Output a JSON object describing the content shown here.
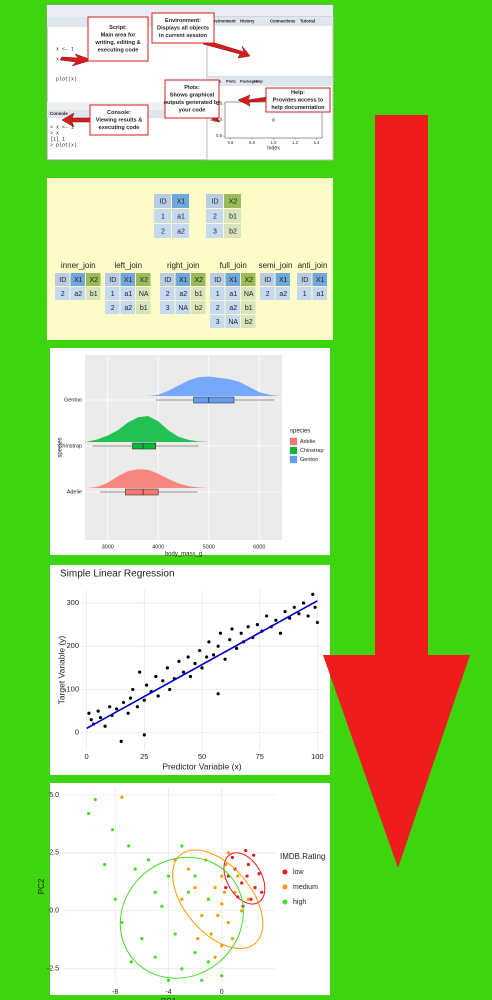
{
  "rstudio": {
    "tabs": [
      "Environment",
      "History",
      "Connections",
      "Tutorial"
    ],
    "plot_tabs": [
      "Files",
      "Plots",
      "Packages",
      "Help"
    ],
    "script_code": [
      "x <- 1",
      "x",
      "plot(x)"
    ],
    "console_tab": "Console",
    "console_lines": [
      "> x <- 1",
      "> x",
      "[1] 1",
      "> plot(x)"
    ],
    "callouts": [
      {
        "lines": [
          "Script:",
          "Main area for",
          "writing, editing &",
          "executing code"
        ]
      },
      {
        "lines": [
          "Environment:",
          "Displays all objects",
          "in current session"
        ]
      },
      {
        "lines": [
          "Help:",
          "Provides access to",
          "help documentation"
        ]
      },
      {
        "lines": [
          "Plots:",
          "Shows graphical",
          "outputs generated by",
          "your code"
        ]
      },
      {
        "lines": [
          "Console:",
          "Viewing results &",
          "executing code"
        ]
      }
    ]
  },
  "joins": {
    "header_colors": {
      "ID": "#b8cce4",
      "X1": "#6fa8dc",
      "X2": "#9bbb59"
    },
    "cell_colors": {
      "ID": "#c5d9f1",
      "X1": "#c5d9f1",
      "X2": "#d7e4bc"
    },
    "left_table": {
      "header": [
        "ID",
        "X1"
      ],
      "rows": [
        [
          "1",
          "a1"
        ],
        [
          "2",
          "a2"
        ]
      ]
    },
    "right_table": {
      "header": [
        "ID",
        "X2"
      ],
      "rows": [
        [
          "2",
          "b1"
        ],
        [
          "3",
          "b2"
        ]
      ]
    },
    "results": [
      {
        "name": "inner_join",
        "header": [
          "ID",
          "X1",
          "X2"
        ],
        "rows": [
          [
            "2",
            "a2",
            "b1"
          ]
        ]
      },
      {
        "name": "left_join",
        "header": [
          "ID",
          "X1",
          "X2"
        ],
        "rows": [
          [
            "1",
            "a1",
            "NA"
          ],
          [
            "2",
            "a2",
            "b1"
          ]
        ]
      },
      {
        "name": "right_join",
        "header": [
          "ID",
          "X1",
          "X2"
        ],
        "rows": [
          [
            "2",
            "a2",
            "b1"
          ],
          [
            "3",
            "NA",
            "b2"
          ]
        ]
      },
      {
        "name": "full_join",
        "header": [
          "ID",
          "X1",
          "X2"
        ],
        "rows": [
          [
            "1",
            "a1",
            "NA"
          ],
          [
            "2",
            "a2",
            "b1"
          ],
          [
            "3",
            "NA",
            "b2"
          ]
        ]
      },
      {
        "name": "semi_join",
        "header": [
          "ID",
          "X1"
        ],
        "rows": [
          [
            "2",
            "a2"
          ]
        ]
      },
      {
        "name": "anti_join",
        "header": [
          "ID",
          "X1"
        ],
        "rows": [
          [
            "1",
            "a1"
          ]
        ]
      }
    ]
  },
  "chart_data": [
    {
      "type": "raincloud",
      "xlabel": "body_mass_g",
      "ylabel": "species",
      "legend_title": "species",
      "grid": true,
      "categories": [
        "Adelie",
        "Chinstrap",
        "Gentoo"
      ],
      "xlim": [
        2550,
        6450
      ],
      "xticks": [
        3000,
        4000,
        5000,
        6000
      ],
      "density_x": [
        2600,
        2800,
        3000,
        3200,
        3400,
        3600,
        3800,
        4000,
        4200,
        4400,
        4600,
        4800,
        5000,
        5200,
        5400,
        5600,
        5800,
        6000,
        6200,
        6400
      ],
      "series": [
        {
          "name": "Adelie",
          "color": "#f8766d",
          "min": 2850,
          "q1": 3350,
          "median": 3700,
          "q3": 4000,
          "max": 4775,
          "density": [
            0,
            0.05,
            0.2,
            0.45,
            0.65,
            0.72,
            0.7,
            0.55,
            0.35,
            0.18,
            0.07,
            0.02,
            0,
            0,
            0,
            0,
            0,
            0,
            0,
            0
          ]
        },
        {
          "name": "Chinstrap",
          "color": "#00ba38",
          "min": 2700,
          "q1": 3490,
          "median": 3700,
          "q3": 3950,
          "max": 4800,
          "density": [
            0.02,
            0.1,
            0.25,
            0.45,
            0.75,
            0.95,
            1.0,
            0.8,
            0.45,
            0.2,
            0.08,
            0.02,
            0,
            0,
            0,
            0,
            0,
            0,
            0,
            0
          ]
        },
        {
          "name": "Gentoo",
          "color": "#619cff",
          "min": 3950,
          "q1": 4700,
          "median": 5000,
          "q3": 5500,
          "max": 6300,
          "density": [
            0,
            0,
            0,
            0,
            0,
            0,
            0,
            0.05,
            0.2,
            0.4,
            0.6,
            0.72,
            0.75,
            0.7,
            0.65,
            0.55,
            0.35,
            0.15,
            0.05,
            0
          ]
        }
      ]
    },
    {
      "type": "scatter",
      "title": "Simple Linear Regression",
      "xlabel": "Predictor Variable (x)",
      "ylabel": "Target Variable (y)",
      "grid": true,
      "xlim": [
        -2,
        102
      ],
      "xticks": [
        0,
        25,
        50,
        75,
        100
      ],
      "ylim": [
        -40,
        330
      ],
      "yticks": [
        0,
        100,
        200,
        300
      ],
      "series": [
        {
          "color": "#000000",
          "x": [
            1,
            2,
            3,
            5,
            6,
            8,
            10,
            11,
            13,
            15,
            16,
            18,
            19,
            20,
            22,
            23,
            25,
            26,
            28,
            30,
            31,
            33,
            35,
            36,
            38,
            40,
            42,
            44,
            45,
            47,
            49,
            50,
            52,
            53,
            55,
            57,
            58,
            60,
            62,
            63,
            65,
            67,
            68,
            70,
            72,
            74,
            76,
            78,
            80,
            82,
            84,
            86,
            88,
            90,
            92,
            94,
            96,
            98,
            99,
            100,
            57,
            25
          ],
          "y": [
            45,
            30,
            20,
            50,
            35,
            15,
            60,
            40,
            55,
            -20,
            70,
            45,
            80,
            100,
            60,
            140,
            75,
            110,
            95,
            130,
            85,
            120,
            150,
            100,
            125,
            165,
            140,
            175,
            130,
            160,
            190,
            150,
            175,
            210,
            180,
            200,
            230,
            170,
            215,
            240,
            195,
            230,
            210,
            245,
            220,
            250,
            235,
            270,
            245,
            260,
            230,
            280,
            265,
            290,
            275,
            300,
            270,
            320,
            290,
            255,
            90,
            -5
          ]
        }
      ],
      "line": {
        "color": "#0000cc",
        "x": [
          0,
          100
        ],
        "y": [
          10,
          305
        ]
      }
    },
    {
      "type": "scatter",
      "xlabel": "PC1",
      "ylabel": "PC2",
      "legend_title": "IMDB.Rating",
      "grid": true,
      "xlim": [
        -12,
        4
      ],
      "xticks": [
        -8,
        -4,
        0
      ],
      "ylim": [
        -3.2,
        5.3
      ],
      "yticks": [
        {
          "value": 5,
          "label": "5.0"
        },
        2.5,
        {
          "value": 0,
          "label": "0.0"
        },
        -2.5
      ],
      "series": [
        {
          "name": "low",
          "color": "#e41a1c",
          "x": [
            1,
            1.5,
            2,
            2.5,
            1.8,
            0.5,
            2.2,
            1.2,
            2.8,
            0.8,
            1.6,
            2.4,
            3,
            0.3,
            1.9
          ],
          "y": [
            1.8,
            1.2,
            2,
            1,
            2.6,
            1.5,
            0.5,
            0.6,
            1.6,
            2.3,
            0.2,
            2.4,
            0.8,
            1,
            1.5
          ],
          "ellipse": {
            "cx": 1.7,
            "cy": 1.4,
            "rx": 1.3,
            "ry": 1.2,
            "angle": -30
          }
        },
        {
          "name": "medium",
          "color": "#ff9900",
          "x": [
            -1,
            -0.5,
            0,
            0.5,
            -1.5,
            0,
            -0.8,
            0.3,
            1,
            -2,
            -1.2,
            0.8,
            -0.3,
            1.5,
            -2.5,
            0,
            -1.8,
            0.5,
            -3,
            -7.5,
            -3.5,
            1.2,
            -0.5,
            2,
            0.2
          ],
          "y": [
            0.5,
            1,
            0.3,
            -0.5,
            -0.2,
            1.5,
            -1,
            2,
            0.8,
            1,
            2.2,
            -1.2,
            -0.2,
            0,
            1.8,
            -1.5,
            -1.2,
            2.5,
            0.5,
            4.9,
            2.2,
            1.5,
            -2,
            0.5,
            0.8
          ],
          "ellipse": {
            "cx": -0.3,
            "cy": 0.5,
            "rx": 2.5,
            "ry": 2.5,
            "angle": -40
          }
        },
        {
          "name": "high",
          "color": "#44dd22",
          "x": [
            -9.5,
            -10,
            -8.2,
            -7,
            -6.5,
            -8,
            -7.5,
            -6,
            -5,
            -4.5,
            -4,
            -3.5,
            -3,
            -2.5,
            -2,
            -1.5,
            -1,
            -5.5,
            -6.8,
            -3,
            -2,
            0,
            -4,
            -1,
            -8.8,
            -5
          ],
          "y": [
            4.8,
            4.2,
            3.5,
            2.8,
            1.8,
            0.5,
            -0.5,
            -1.2,
            -2,
            0.2,
            1.5,
            -1,
            -2.5,
            0.8,
            -1.8,
            -3,
            -2.2,
            2.2,
            -2.2,
            2.8,
            1.5,
            -2.8,
            -3,
            0.5,
            2,
            0.8
          ],
          "ellipse": {
            "cx": -3,
            "cy": -0.3,
            "rx": 4.8,
            "ry": 2.5,
            "angle": -40
          }
        }
      ]
    },
    {
      "type": "scatter",
      "xlabel": "Index",
      "ylabel": "x",
      "grid": false,
      "xlim": [
        0.55,
        1.45
      ],
      "xticks": [
        0.6,
        0.8,
        {
          "value": 1,
          "label": "1.0"
        },
        1.2,
        1.4
      ],
      "ylim": [
        0.55,
        1.45
      ],
      "yticks": [
        0.6,
        {
          "value": 1,
          "label": "1.0"
        },
        1.4
      ],
      "series": [
        {
          "color": "#333333",
          "hollow": true,
          "x": [
            1
          ],
          "y": [
            1
          ]
        }
      ]
    }
  ]
}
